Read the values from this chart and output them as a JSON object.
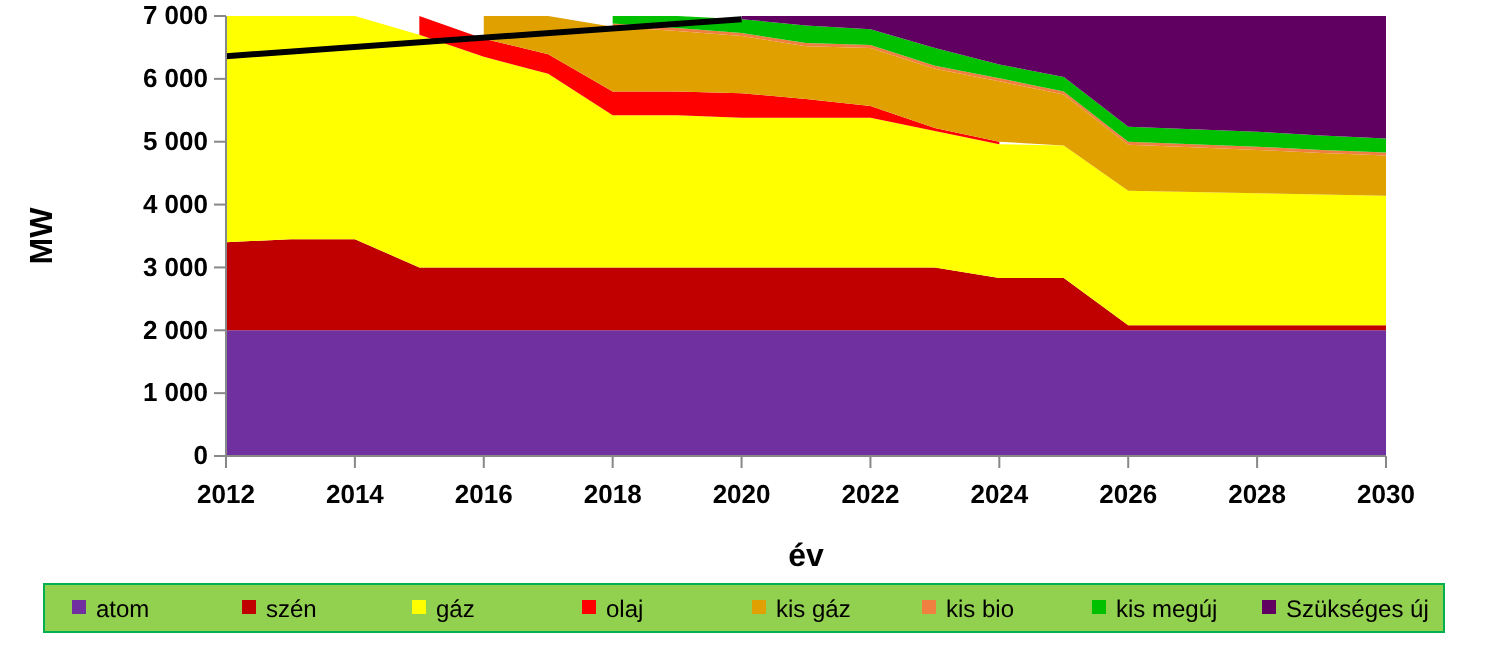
{
  "chart_data": {
    "type": "area",
    "stacked": true,
    "xlabel": "év",
    "ylabel": "MW",
    "x": [
      2012,
      2013,
      2014,
      2015,
      2016,
      2017,
      2018,
      2019,
      2020,
      2021,
      2022,
      2023,
      2024,
      2025,
      2026,
      2027,
      2028,
      2029,
      2030
    ],
    "xlim": [
      2012,
      2030
    ],
    "xticks": [
      {
        "value": 2012,
        "label": "2012"
      },
      {
        "value": 2014,
        "label": "2014"
      },
      {
        "value": 2016,
        "label": "2016"
      },
      {
        "value": 2018,
        "label": "2018"
      },
      {
        "value": 2020,
        "label": "2020"
      },
      {
        "value": 2022,
        "label": "2022"
      },
      {
        "value": 2024,
        "label": "2024"
      },
      {
        "value": 2026,
        "label": "2026"
      },
      {
        "value": 2028,
        "label": "2028"
      },
      {
        "value": 2030,
        "label": "2030"
      }
    ],
    "ylim": [
      0,
      7000
    ],
    "yticks": [
      0,
      {
        "value": 1000,
        "label": "1 000"
      },
      {
        "value": 2000,
        "label": "2 000"
      },
      {
        "value": 3000,
        "label": "3 000"
      },
      {
        "value": 4000,
        "label": "4 000"
      },
      {
        "value": 5000,
        "label": "5 000"
      },
      {
        "value": 6000,
        "label": "6 000"
      },
      {
        "value": 7000,
        "label": "7 000"
      }
    ],
    "legend": "bottom",
    "series": [
      {
        "name": "atom",
        "color": "#7030a0",
        "values": [
          2000,
          2000,
          2000,
          2000,
          2000,
          2000,
          2000,
          2000,
          2000,
          2000,
          2000,
          2000,
          2000,
          2000,
          2000,
          2000,
          2000,
          2000,
          2000
        ]
      },
      {
        "name": "szén",
        "color": "#c00000",
        "values": [
          1400,
          1450,
          1450,
          1000,
          1000,
          1000,
          1000,
          1000,
          1000,
          1000,
          1000,
          1000,
          830,
          830,
          80,
          80,
          80,
          80,
          80
        ]
      },
      {
        "name": "gáz",
        "color": "#ffff00",
        "values": [
          3600,
          3550,
          3550,
          3700,
          3350,
          3080,
          2420,
          2420,
          2380,
          2380,
          2380,
          2170,
          2130,
          2110,
          2140,
          2120,
          2100,
          2080,
          2060
        ]
      },
      {
        "name": "olaj",
        "color": "#ff0000",
        "values": [
          null,
          null,
          null,
          300,
          290,
          310,
          380,
          380,
          390,
          300,
          190,
          50,
          40,
          null,
          null,
          null,
          null,
          null,
          null
        ]
      },
      {
        "name": "kis gáz",
        "color": "#e0a000",
        "values": [
          null,
          null,
          null,
          null,
          360,
          610,
          1030,
          960,
          910,
          840,
          920,
          940,
          960,
          810,
          730,
          710,
          690,
          660,
          640
        ]
      },
      {
        "name": "kis bio",
        "color": "#f08040",
        "values": [
          null,
          null,
          null,
          null,
          null,
          null,
          50,
          50,
          50,
          50,
          50,
          50,
          50,
          50,
          50,
          50,
          50,
          50,
          50
        ]
      },
      {
        "name": "kis megúj",
        "color": "#00c000",
        "values": [
          null,
          null,
          null,
          null,
          null,
          null,
          120,
          190,
          220,
          280,
          250,
          280,
          220,
          230,
          240,
          240,
          240,
          230,
          220
        ]
      },
      {
        "name": "Szükséges új",
        "color": "#600060",
        "values": [
          null,
          null,
          null,
          null,
          null,
          null,
          null,
          null,
          50,
          150,
          210,
          510,
          770,
          970,
          1760,
          1800,
          1840,
          1900,
          1950
        ]
      },
      {
        "type": "line",
        "color": "#000000",
        "x": [
          2012,
          2020
        ],
        "values": [
          6360,
          6950
        ]
      }
    ]
  }
}
